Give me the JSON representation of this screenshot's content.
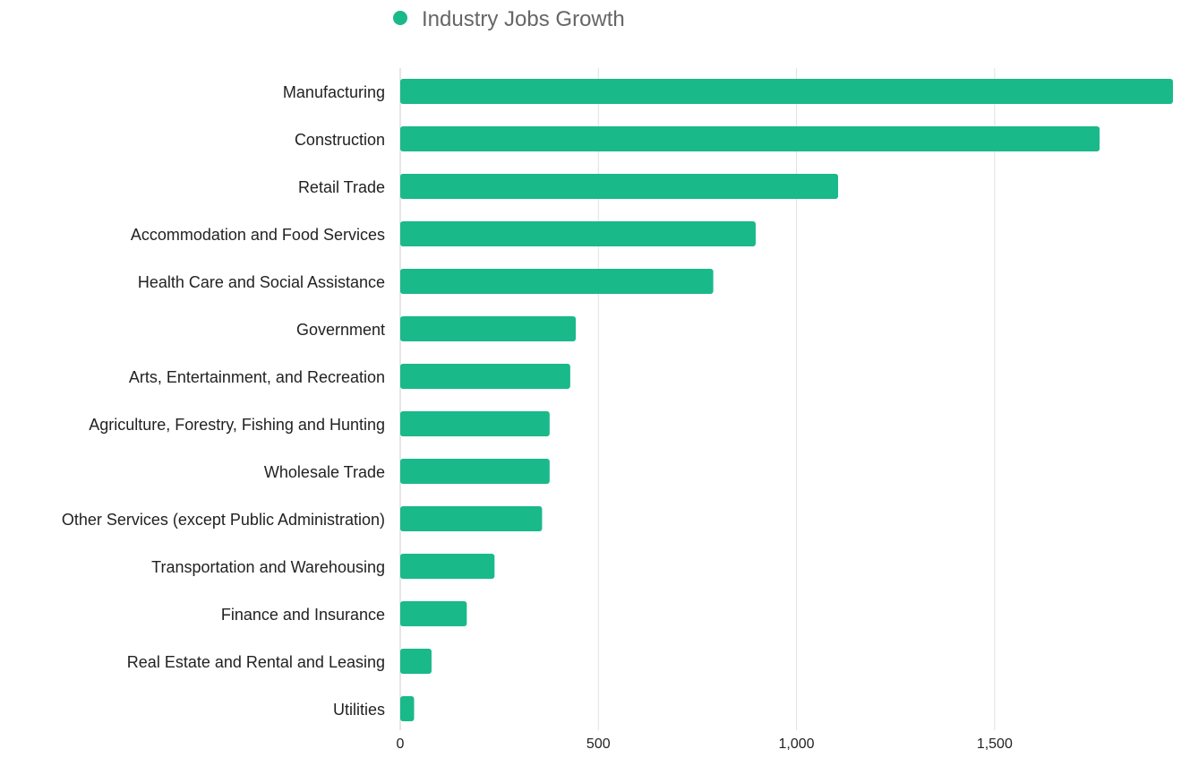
{
  "chart_data": {
    "type": "bar",
    "orientation": "horizontal",
    "legend": {
      "placement": "top-center",
      "entries": [
        "Industry Jobs Growth"
      ]
    },
    "series": [
      {
        "name": "Industry Jobs Growth",
        "color": "#1ab98a",
        "values": [
          1950,
          1765,
          1105,
          897,
          790,
          443,
          429,
          377,
          377,
          358,
          238,
          168,
          79,
          35
        ]
      }
    ],
    "categories": [
      "Manufacturing",
      "Construction",
      "Retail Trade",
      "Accommodation and Food Services",
      "Health Care and Social Assistance",
      "Government",
      "Arts, Entertainment, and Recreation",
      "Agriculture, Forestry, Fishing and Hunting",
      "Wholesale Trade",
      "Other Services (except Public Administration)",
      "Transportation and Warehousing",
      "Finance and Insurance",
      "Real Estate and Rental and Leasing",
      "Utilities"
    ],
    "xlim": [
      0,
      1950
    ],
    "xticks": [
      0,
      500,
      1000,
      1500
    ],
    "xtick_labels": [
      "0",
      "500",
      "1,000",
      "1,500"
    ],
    "grid": {
      "vertical": true,
      "horizontal": false
    },
    "colors": {
      "bar": "#1ab98a",
      "grid": "#e0e0e0",
      "label": "#222222",
      "legend_text": "#666666"
    }
  }
}
